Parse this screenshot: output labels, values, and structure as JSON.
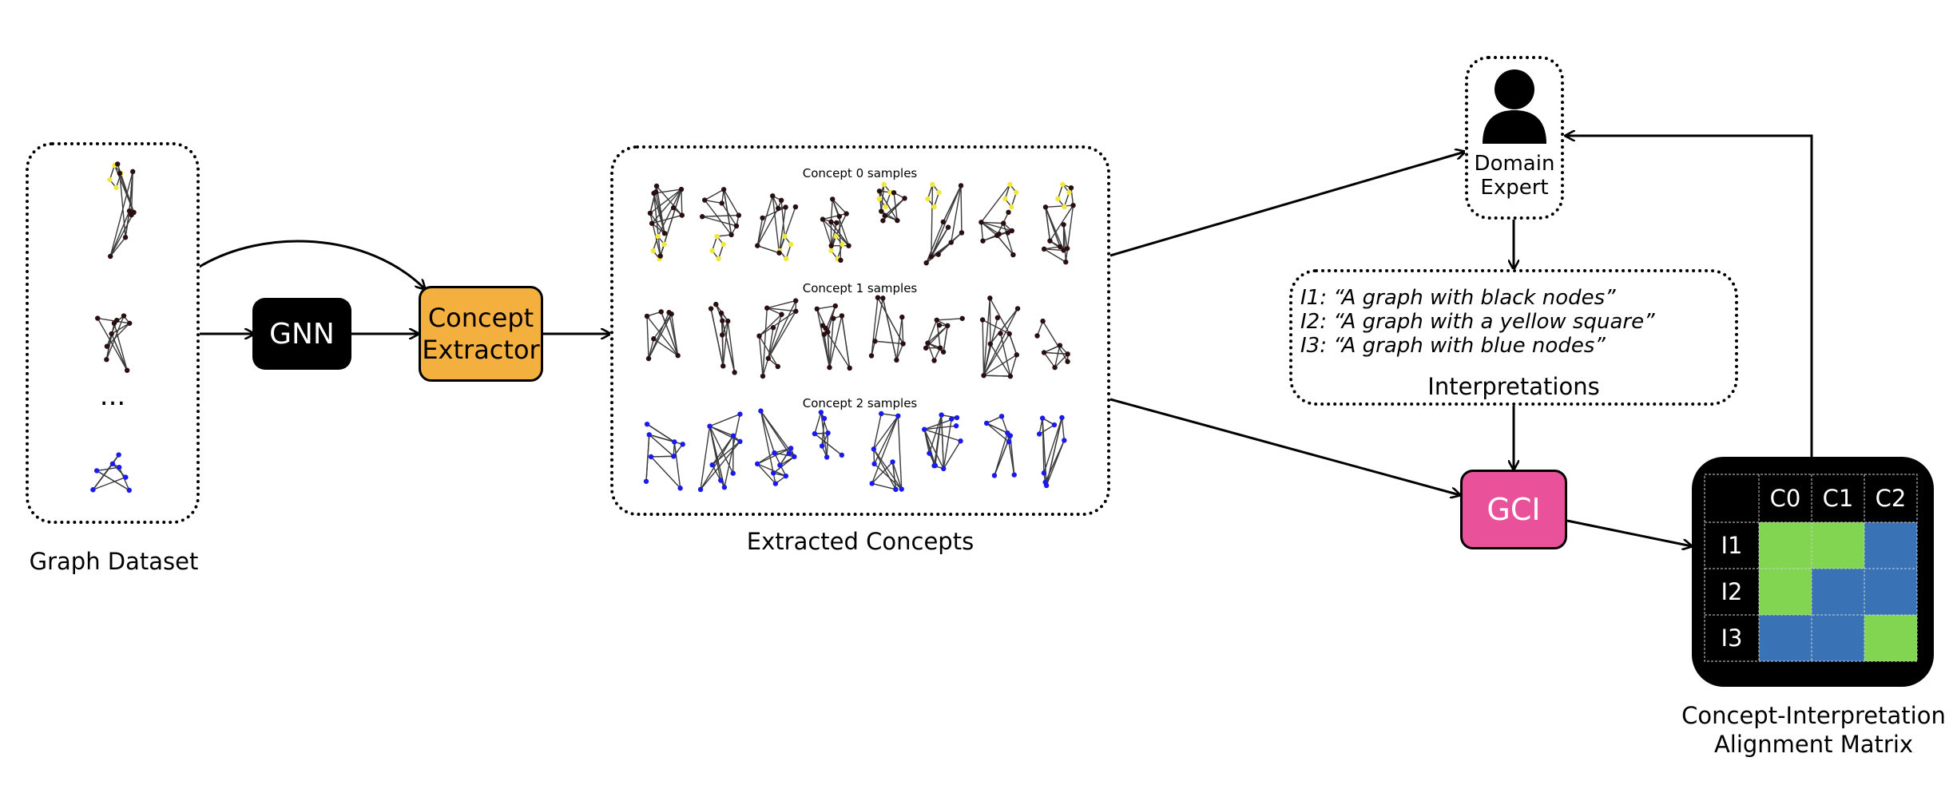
{
  "dataset": {
    "label": "Graph Dataset",
    "ellipsis": "..."
  },
  "gnn": {
    "label": "GNN"
  },
  "extractor": {
    "line1": "Concept",
    "line2": "Extractor"
  },
  "concepts": {
    "label": "Extracted Concepts",
    "rows": [
      {
        "title": "Concept 0 samples",
        "node_color": "#2a0f12"
      },
      {
        "title": "Concept 1 samples",
        "node_color": "#2a0f12"
      },
      {
        "title": "Concept 2 samples",
        "node_color": "#1a1aee"
      }
    ],
    "highlight_color": "#f0e83c"
  },
  "expert": {
    "line1": "Domain",
    "line2": "Expert",
    "icon": "person-icon"
  },
  "interpretations": {
    "label": "Interpretations",
    "items": [
      "I1: “A graph with black nodes”",
      "I2: “A graph with a yellow square”",
      "I3: “A graph with blue nodes”"
    ]
  },
  "gci": {
    "label": "GCI"
  },
  "matrix": {
    "label_line1": "Concept-Interpretation",
    "label_line2": "Alignment Matrix",
    "columns": [
      "C0",
      "C1",
      "C2"
    ],
    "rows": [
      {
        "label": "I1",
        "cells": [
          "green",
          "green",
          "blue"
        ]
      },
      {
        "label": "I2",
        "cells": [
          "green",
          "blue",
          "blue"
        ]
      },
      {
        "label": "I3",
        "cells": [
          "blue",
          "blue",
          "green"
        ]
      }
    ],
    "colors": {
      "green": "#82d551",
      "blue": "#3a72b6"
    }
  }
}
